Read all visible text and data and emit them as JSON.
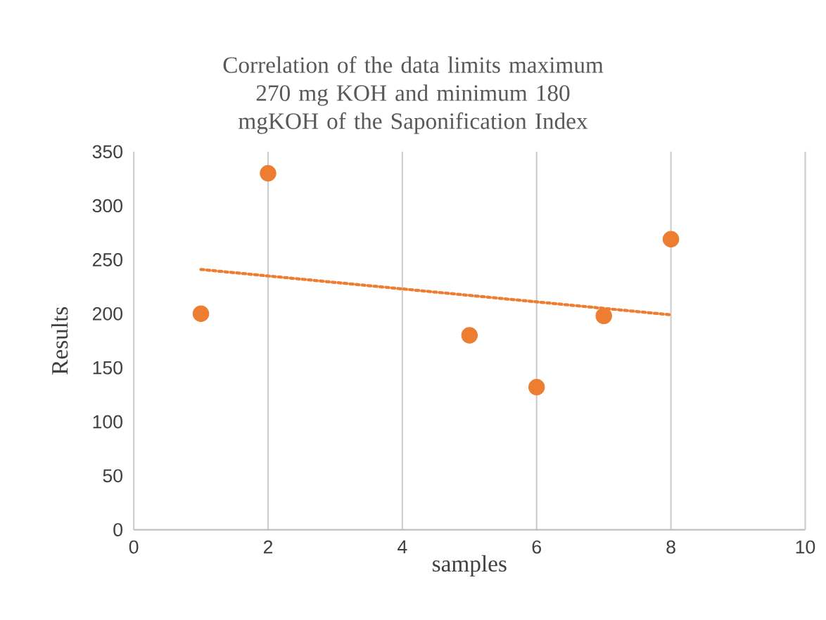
{
  "chart_data": {
    "type": "scatter",
    "title": "Correlation of the data limits maximum 270 mg KOH and minimum 180 mgKOH of the Saponification Index",
    "xlabel": "samples",
    "ylabel": "Results",
    "marker": "circle",
    "grid": "x",
    "xlim": [
      0,
      10
    ],
    "xticks": [
      0,
      2,
      4,
      6,
      8,
      10
    ],
    "ylim": [
      0,
      350
    ],
    "yticks": [
      0,
      50,
      100,
      150,
      200,
      250,
      300,
      350
    ],
    "series": [
      {
        "color": "#ed7d31",
        "x": [
          1,
          2,
          5,
          6,
          7,
          8
        ],
        "values": [
          200,
          330,
          180,
          132,
          198,
          269
        ]
      },
      {
        "type": "line",
        "color": "#ed7d31",
        "line_style": "dotted",
        "marker": "none",
        "x": [
          1,
          8
        ],
        "values": [
          241,
          199
        ]
      }
    ]
  }
}
